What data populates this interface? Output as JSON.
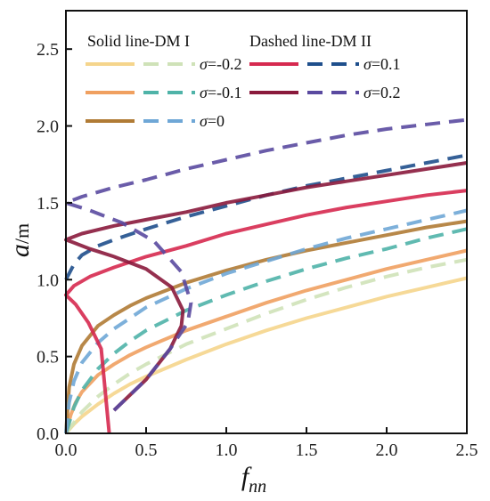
{
  "chart_data": {
    "type": "line",
    "title": "",
    "xlabel": "f",
    "xlabel_sub": "nn",
    "ylabel": "a",
    "ylabel_unit": "/m",
    "xlim": [
      0.0,
      2.5
    ],
    "ylim": [
      0.0,
      2.75
    ],
    "xticks": [
      "0.0",
      "0.5",
      "1.0",
      "1.5",
      "2.0",
      "2.5"
    ],
    "yticks": [
      "0.0",
      "0.5",
      "1.0",
      "1.5",
      "2.0",
      "2.5"
    ],
    "grid": false,
    "legend_placement": "top",
    "legend_headers": [
      "Solid line-DM I",
      "Dashed line-DM II"
    ],
    "series": [
      {
        "name": "σ=-0.2",
        "color_solid": "#f5d58c",
        "color_dashed": "#cfe2b8",
        "solid": {
          "x": [
            0.0,
            0.05,
            0.1,
            0.2,
            0.3,
            0.4,
            0.5,
            0.75,
            1.0,
            1.25,
            1.5,
            1.75,
            2.0,
            2.25,
            2.5
          ],
          "y": [
            0.0,
            0.06,
            0.11,
            0.19,
            0.26,
            0.32,
            0.37,
            0.48,
            0.58,
            0.67,
            0.75,
            0.82,
            0.89,
            0.95,
            1.01
          ]
        },
        "dashed": {
          "x": [
            0.0,
            0.05,
            0.1,
            0.2,
            0.3,
            0.4,
            0.5,
            0.75,
            1.0,
            1.25,
            1.5,
            1.75,
            2.0,
            2.25,
            2.5
          ],
          "y": [
            0.0,
            0.07,
            0.14,
            0.24,
            0.32,
            0.39,
            0.45,
            0.58,
            0.68,
            0.78,
            0.87,
            0.95,
            1.02,
            1.08,
            1.13
          ]
        }
      },
      {
        "name": "σ=-0.1",
        "color_solid": "#f0a060",
        "color_dashed": "#4fb3a8",
        "solid": {
          "x": [
            0.0,
            0.03,
            0.06,
            0.1,
            0.2,
            0.3,
            0.4,
            0.5,
            0.75,
            1.0,
            1.25,
            1.5,
            1.75,
            2.0,
            2.25,
            2.5
          ],
          "y": [
            0.0,
            0.12,
            0.2,
            0.27,
            0.38,
            0.45,
            0.51,
            0.56,
            0.67,
            0.76,
            0.85,
            0.93,
            1.0,
            1.07,
            1.13,
            1.19
          ]
        },
        "dashed": {
          "x": [
            0.0,
            0.05,
            0.1,
            0.2,
            0.3,
            0.4,
            0.5,
            0.75,
            1.0,
            1.25,
            1.5,
            1.75,
            2.0,
            2.25,
            2.5
          ],
          "y": [
            0.0,
            0.17,
            0.28,
            0.42,
            0.52,
            0.6,
            0.67,
            0.8,
            0.9,
            0.99,
            1.07,
            1.14,
            1.2,
            1.27,
            1.33
          ]
        }
      },
      {
        "name": "σ=0",
        "color_solid": "#b07b35",
        "color_dashed": "#6fa7d6",
        "solid": {
          "x": [
            0.0,
            0.02,
            0.05,
            0.1,
            0.2,
            0.3,
            0.4,
            0.5,
            0.75,
            1.0,
            1.25,
            1.5,
            1.75,
            2.0,
            2.25,
            2.5
          ],
          "y": [
            0.0,
            0.3,
            0.45,
            0.57,
            0.7,
            0.77,
            0.83,
            0.88,
            0.98,
            1.06,
            1.13,
            1.19,
            1.24,
            1.29,
            1.34,
            1.38
          ]
        },
        "dashed": {
          "x": [
            0.0,
            0.02,
            0.05,
            0.1,
            0.2,
            0.3,
            0.4,
            0.5,
            0.75,
            1.0,
            1.25,
            1.5,
            1.75,
            2.0,
            2.25,
            2.5
          ],
          "y": [
            0.0,
            0.2,
            0.34,
            0.46,
            0.59,
            0.68,
            0.75,
            0.82,
            0.94,
            1.04,
            1.12,
            1.2,
            1.27,
            1.33,
            1.39,
            1.45
          ]
        }
      },
      {
        "name": "σ=0.1",
        "color_solid": "#d6294f",
        "color_dashed": "#1f4f8c",
        "solid": {
          "x": [
            0.27,
            0.22,
            0.14,
            0.06,
            0.0,
            0.05,
            0.15,
            0.3,
            0.5,
            0.75,
            1.0,
            1.25,
            1.5,
            1.75,
            2.0,
            2.25,
            2.5
          ],
          "y": [
            0.0,
            0.55,
            0.72,
            0.84,
            0.9,
            0.96,
            1.02,
            1.08,
            1.15,
            1.22,
            1.3,
            1.36,
            1.42,
            1.47,
            1.51,
            1.55,
            1.58
          ]
        },
        "dashed": {
          "x": [
            0.0,
            0.05,
            0.1,
            0.2,
            0.3,
            0.5,
            0.75,
            1.0,
            1.25,
            1.5,
            1.75,
            2.0,
            2.25,
            2.5
          ],
          "y": [
            1.0,
            1.1,
            1.16,
            1.22,
            1.26,
            1.33,
            1.41,
            1.48,
            1.55,
            1.61,
            1.66,
            1.71,
            1.76,
            1.81
          ]
        }
      },
      {
        "name": "σ=0.2",
        "color_solid": "#8a1a3c",
        "color_dashed": "#5a4aa0",
        "solid": {
          "x": [
            0.3,
            0.5,
            0.65,
            0.72,
            0.73,
            0.66,
            0.5,
            0.3,
            0.15,
            0.05,
            0.0,
            0.1,
            0.3,
            0.5,
            0.75,
            1.0,
            1.25,
            1.5,
            1.75,
            2.0,
            2.25,
            2.5
          ],
          "y": [
            0.15,
            0.35,
            0.55,
            0.7,
            0.8,
            0.95,
            1.07,
            1.15,
            1.2,
            1.24,
            1.26,
            1.3,
            1.35,
            1.39,
            1.44,
            1.5,
            1.55,
            1.6,
            1.64,
            1.68,
            1.72,
            1.76
          ]
        },
        "dashed": {
          "x": [
            0.3,
            0.5,
            0.65,
            0.76,
            0.78,
            0.72,
            0.55,
            0.35,
            0.15,
            0.0,
            0.1,
            0.3,
            0.5,
            0.75,
            1.0,
            1.25,
            1.5,
            1.75,
            2.0,
            2.25,
            2.5
          ],
          "y": [
            0.15,
            0.35,
            0.55,
            0.72,
            0.85,
            1.05,
            1.25,
            1.37,
            1.45,
            1.5,
            1.54,
            1.6,
            1.65,
            1.72,
            1.78,
            1.84,
            1.89,
            1.94,
            1.98,
            2.01,
            2.04
          ]
        }
      }
    ]
  }
}
